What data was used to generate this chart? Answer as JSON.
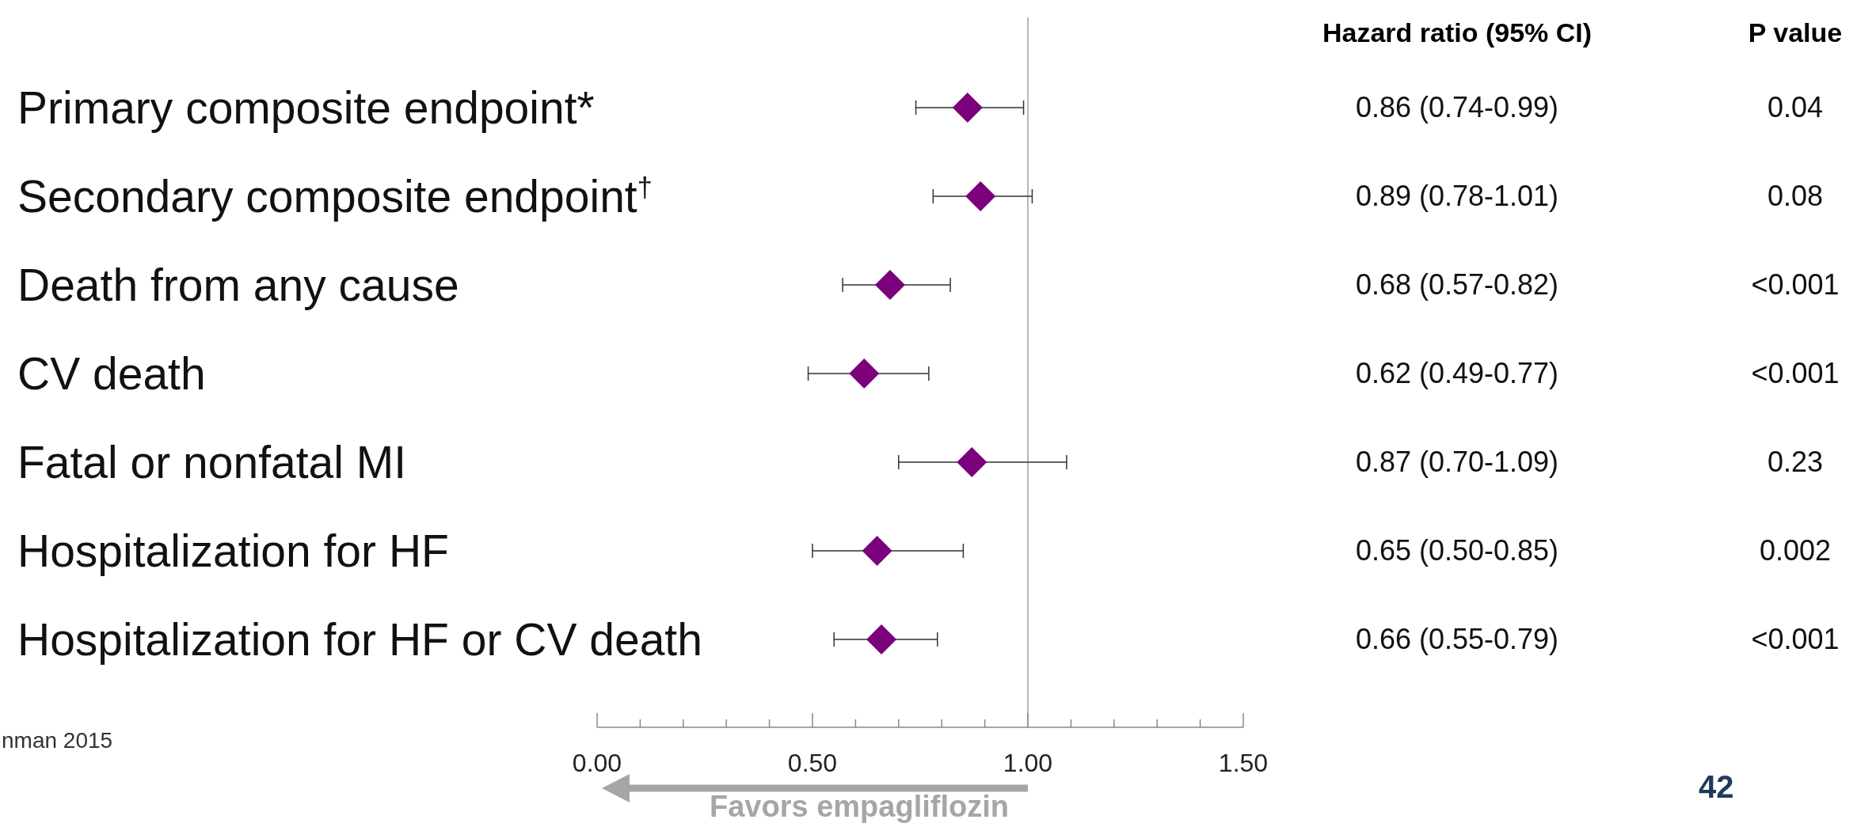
{
  "chart_data": {
    "type": "scatter",
    "orientation": "horizontal",
    "marker": "diamond",
    "color": "#7b007b",
    "categories": [
      "Primary composite endpoint*",
      "Secondary composite endpoint$^{†}$",
      "Death from any cause",
      "CV death",
      "Fatal or nonfatal MI",
      "Hospitalization for HF",
      "Hospitalization for HF or CV death"
    ],
    "values": [
      0.86,
      0.89,
      0.68,
      0.62,
      0.87,
      0.65,
      0.66
    ],
    "errors": [
      [
        0.74,
        0.99
      ],
      [
        0.78,
        1.01
      ],
      [
        0.57,
        0.82
      ],
      [
        0.49,
        0.77
      ],
      [
        0.7,
        1.09
      ],
      [
        0.5,
        0.85
      ],
      [
        0.55,
        0.79
      ]
    ],
    "value_labels": [
      "0.86 (0.74-0.99)",
      "0.89 (0.78-1.01)",
      "0.68 (0.57-0.82)",
      "0.62 (0.49-0.77)",
      "0.87 (0.70-1.09)",
      "0.65 (0.50-0.85)",
      "0.66 (0.55-0.79)"
    ],
    "y2_categories": [
      "0.04",
      "0.08",
      "<0.001",
      "<0.001",
      "0.23",
      "0.002",
      "<0.001"
    ],
    "xlim": [
      0,
      1.5
    ],
    "xticks": [
      {
        "value": 0,
        "label": "0.00"
      },
      {
        "value": 0.1,
        "label": null
      },
      {
        "value": 0.2,
        "label": null
      },
      {
        "value": 0.3,
        "label": null
      },
      {
        "value": 0.4,
        "label": null
      },
      {
        "value": 0.5,
        "label": "0.50"
      },
      {
        "value": 0.6,
        "label": null
      },
      {
        "value": 0.7,
        "label": null
      },
      {
        "value": 0.8,
        "label": null
      },
      {
        "value": 0.9,
        "label": null
      },
      {
        "value": 1,
        "label": "1.00"
      },
      {
        "value": 1.1,
        "label": null
      },
      {
        "value": 1.2,
        "label": null
      },
      {
        "value": 1.3,
        "label": null
      },
      {
        "value": 1.4,
        "label": null
      },
      {
        "value": 1.5,
        "label": "1.50"
      }
    ],
    "ref_lines": [
      {
        "axis": "x",
        "value": 1,
        "color": "#a0a0a0"
      }
    ],
    "xlabel": "Favors empagliflozin",
    "annotations": [
      "Hazard ratio (95% CI)",
      "P value",
      "nman 2015",
      "42"
    ]
  }
}
